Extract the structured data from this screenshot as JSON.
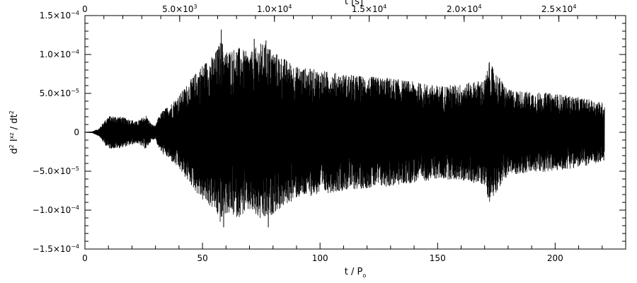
{
  "chart_data": {
    "type": "line",
    "title": "",
    "xlabel": "t / P",
    "xlabel_sub": "o",
    "ylabel_parts": [
      "d",
      "2",
      " I",
      "xz",
      " / dt",
      "2"
    ],
    "top_axis_label": "t [s]",
    "xlim": [
      0,
      230
    ],
    "ylim": [
      -0.00015,
      0.00015
    ],
    "x_ticks": [
      {
        "value": 0,
        "label": "0"
      },
      {
        "value": 50,
        "label": "50"
      },
      {
        "value": 100,
        "label": "100"
      },
      {
        "value": 150,
        "label": "150"
      },
      {
        "value": 200,
        "label": "200"
      }
    ],
    "y_ticks": [
      {
        "value": 0.00015,
        "mant": "1.5×10",
        "exp": "−4"
      },
      {
        "value": 0.0001,
        "mant": "1.0×10",
        "exp": "−4"
      },
      {
        "value": 5e-05,
        "mant": "5.0×10",
        "exp": "−5"
      },
      {
        "value": 0,
        "mant": "0",
        "exp": ""
      },
      {
        "value": -5e-05,
        "mant": "−5.0×10",
        "exp": "−5"
      },
      {
        "value": -0.0001,
        "mant": "−1.0×10",
        "exp": "−4"
      },
      {
        "value": -0.00015,
        "mant": "−1.5×10",
        "exp": "−4"
      }
    ],
    "top_ticks": [
      {
        "value": 0,
        "mant": "0",
        "exp": ""
      },
      {
        "value": 40.3,
        "mant": "5.0×10",
        "exp": "3"
      },
      {
        "value": 80.6,
        "mant": "1.0×10",
        "exp": "4"
      },
      {
        "value": 120.9,
        "mant": "1.5×10",
        "exp": "4"
      },
      {
        "value": 161.3,
        "mant": "2.0×10",
        "exp": "4"
      },
      {
        "value": 201.6,
        "mant": "2.5×10",
        "exp": "4"
      }
    ],
    "envelope": {
      "x": [
        0,
        3,
        6,
        8,
        10,
        14,
        18,
        22,
        26,
        28,
        30,
        31,
        33,
        36,
        40,
        45,
        50,
        55,
        58,
        60,
        65,
        70,
        75,
        78,
        80,
        85,
        90,
        100,
        110,
        120,
        130,
        140,
        150,
        160,
        170,
        172,
        180,
        190,
        200,
        210,
        215,
        221
      ],
      "y": [
        5e-07,
        1e-06,
        5e-06,
        1.4e-05,
        2.1e-05,
        2.1e-05,
        1.8e-05,
        1.4e-05,
        2.2e-05,
        1.2e-05,
        8e-06,
        1.8e-05,
        2.8e-05,
        3.5e-05,
        4.8e-05,
        6.8e-05,
        8.8e-05,
        0.0001,
        0.00012,
        0.000105,
        0.00011,
        0.000102,
        0.000115,
        0.000112,
        0.000105,
        9.5e-05,
        8.5e-05,
        8e-05,
        7.5e-05,
        7.2e-05,
        7e-05,
        6.5e-05,
        6e-05,
        6.2e-05,
        6.8e-05,
        9e-05,
        5.5e-05,
        5.2e-05,
        5e-05,
        4.5e-05,
        4.2e-05,
        3.8e-05
      ]
    },
    "notable_peaks": [
      {
        "x": 58,
        "y": 0.000132
      },
      {
        "x": 59,
        "y": -0.000122
      },
      {
        "x": 72,
        "y": 0.00012
      },
      {
        "x": 78,
        "y": -0.000122
      },
      {
        "x": 77,
        "y": 0.000118
      },
      {
        "x": 172,
        "y": 9e-05
      }
    ],
    "line_color": "#000000",
    "grid": false
  }
}
